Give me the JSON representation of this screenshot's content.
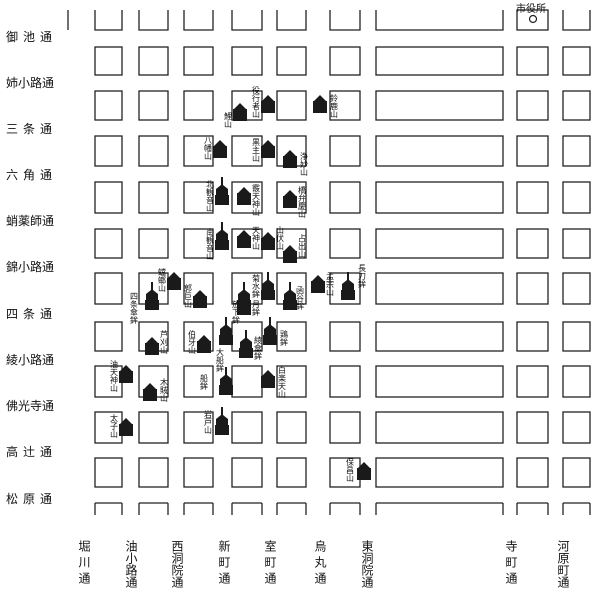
{
  "map": {
    "city_office_label": "市役所",
    "ew_streets": [
      {
        "id": "oike",
        "label": "御池通"
      },
      {
        "id": "anekoji",
        "label": "姉小路通"
      },
      {
        "id": "sanjo",
        "label": "三条通"
      },
      {
        "id": "rokkaku",
        "label": "六角通"
      },
      {
        "id": "takoyakushi",
        "label": "蛸薬師通"
      },
      {
        "id": "nishikikoji",
        "label": "錦小路通"
      },
      {
        "id": "shijo",
        "label": "四条通"
      },
      {
        "id": "ayanokoji",
        "label": "綾小路通"
      },
      {
        "id": "bukkoji",
        "label": "佛光寺通"
      },
      {
        "id": "takatsuji",
        "label": "高辻通"
      },
      {
        "id": "matsubara",
        "label": "松原通"
      }
    ],
    "ns_streets": [
      {
        "id": "horikawa",
        "label": "堀川通"
      },
      {
        "id": "aburanokoji",
        "label": "油小路通"
      },
      {
        "id": "nishinotoin",
        "label": "西洞院通"
      },
      {
        "id": "shinmachi",
        "label": "新町通"
      },
      {
        "id": "muromachi",
        "label": "室町通"
      },
      {
        "id": "karasuma",
        "label": "烏丸通"
      },
      {
        "id": "higashinotoin",
        "label": "東洞院通"
      },
      {
        "id": "teramachi",
        "label": "寺町通"
      },
      {
        "id": "kawaramachi",
        "label": "河原町通"
      }
    ],
    "floats": [
      {
        "id": "koiyama",
        "label": "鯉山",
        "type": "yama"
      },
      {
        "id": "hachimanyama",
        "label": "八幡山",
        "type": "yama"
      },
      {
        "id": "kitakannonyama",
        "label": "北観音山",
        "type": "hoko"
      },
      {
        "id": "minamikannonyama",
        "label": "南観音山",
        "type": "hoko"
      },
      {
        "id": "joumyouyama",
        "label": "浄妙山",
        "type": "yama"
      },
      {
        "id": "kuronushiyama",
        "label": "黒主山",
        "type": "yama"
      },
      {
        "id": "yakushiyama",
        "label": "役行者山",
        "type": "yama"
      },
      {
        "id": "suzukayama",
        "label": "鈴鹿山",
        "type": "yama"
      },
      {
        "id": "toroyama",
        "label": "蟷螂山",
        "type": "yama"
      },
      {
        "id": "hakugayama",
        "label": "伯牙山",
        "type": "yama"
      },
      {
        "id": "tenjinyama",
        "label": "天神山",
        "type": "yama"
      },
      {
        "id": "abarayama",
        "label": "芦刈山",
        "type": "yama"
      },
      {
        "id": "iwatoyama",
        "label": "岩戸山",
        "type": "hoko"
      },
      {
        "id": "funehoko",
        "label": "船鉾",
        "type": "hoko"
      },
      {
        "id": "kikusuihoko",
        "label": "菊水鉾",
        "type": "hoko"
      },
      {
        "id": "naginatahoko",
        "label": "長刀鉾",
        "type": "hoko"
      },
      {
        "id": "tsukihoko",
        "label": "月鉾",
        "type": "hoko"
      },
      {
        "id": "niwatorihoko",
        "label": "鶏鉾",
        "type": "hoko"
      },
      {
        "id": "kankohoko",
        "label": "函谷鉾",
        "type": "hoko"
      },
      {
        "id": "shijokasahoko",
        "label": "四条傘鉾",
        "type": "hoko"
      },
      {
        "id": "hoshoyama",
        "label": "保昌山",
        "type": "yama"
      },
      {
        "id": "taishiyama",
        "label": "太子山",
        "type": "yama"
      },
      {
        "id": "mokuzayama",
        "label": "木賊山",
        "type": "yama"
      },
      {
        "id": "aburatenjinyama",
        "label": "油天神山",
        "type": "yama"
      },
      {
        "id": "hoshikayama",
        "label": "白楽天山",
        "type": "yama"
      },
      {
        "id": "moso",
        "label": "孟宗山",
        "type": "yama"
      },
      {
        "id": "urade",
        "label": "占出山",
        "type": "yama"
      },
      {
        "id": "yamabushi",
        "label": "山伏山",
        "type": "yama"
      },
      {
        "id": "sumo",
        "label": "霰天神山",
        "type": "yama"
      },
      {
        "id": "ayagasa",
        "label": "綾傘鉾",
        "type": "hoko"
      },
      {
        "id": "taka",
        "label": "放下鉾",
        "type": "hoko"
      },
      {
        "id": "oofune",
        "label": "大船鉾",
        "type": "hoko"
      },
      {
        "id": "hoshita",
        "label": "郭巨山",
        "type": "yama"
      },
      {
        "id": "hakuyama",
        "label": "橋弁慶山",
        "type": "yama"
      }
    ]
  }
}
